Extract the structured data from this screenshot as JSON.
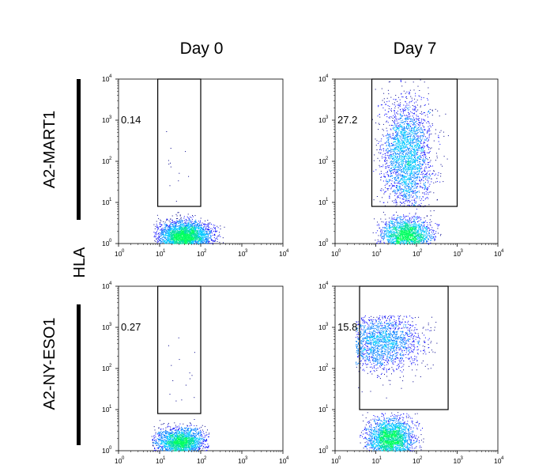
{
  "figure": {
    "column_titles": [
      "Day 0",
      "Day 7"
    ],
    "row_labels": [
      "A2-MART1",
      "A2-NY-ESO1"
    ],
    "y_axis_label": "HLA"
  },
  "chart_data": {
    "type": "scatter",
    "scale": "log",
    "xlim": [
      1,
      10000
    ],
    "ylim": [
      1,
      10000
    ],
    "x_tick_labels": [
      "10",
      "10",
      "10",
      "10",
      "10"
    ],
    "x_tick_exponents": [
      "0",
      "1",
      "2",
      "3",
      "4"
    ],
    "y_tick_labels": [
      "10",
      "10",
      "10",
      "10",
      "10"
    ],
    "y_tick_exponents": [
      "0",
      "1",
      "2",
      "3",
      "4"
    ],
    "colormap": [
      "#00008b",
      "#0000ff",
      "#0080ff",
      "#00c8ff",
      "#00e0a0",
      "#00ff60"
    ],
    "panels": [
      {
        "row": "A2-MART1",
        "column": "Day 0",
        "gate": {
          "x": [
            9,
            100
          ],
          "y": [
            8,
            10000
          ],
          "percent": "0.14"
        },
        "populations": [
          {
            "n": 2600,
            "x_log": [
              1.6,
              0.32
            ],
            "y_log": [
              0.2,
              0.17
            ],
            "x_clip": [
              0.85,
              2.6
            ],
            "y_clip": [
              0.0,
              0.78
            ]
          },
          {
            "n": 12,
            "x_log": [
              1.55,
              0.35
            ],
            "y_log": [
              1.9,
              0.55
            ],
            "x_clip": [
              1.05,
              1.95
            ],
            "y_clip": [
              1.0,
              2.8
            ]
          }
        ]
      },
      {
        "row": "A2-MART1",
        "column": "Day 7",
        "gate": {
          "x": [
            8,
            1000
          ],
          "y": [
            8,
            10000
          ],
          "percent": "27.2"
        },
        "populations": [
          {
            "n": 1700,
            "x_log": [
              1.75,
              0.3
            ],
            "y_log": [
              0.22,
              0.2
            ],
            "x_clip": [
              0.8,
              2.6
            ],
            "y_clip": [
              0.0,
              0.85
            ]
          },
          {
            "n": 2600,
            "x_log": [
              1.75,
              0.3
            ],
            "y_log": [
              2.1,
              0.7
            ],
            "x_clip": [
              0.9,
              2.8
            ],
            "y_clip": [
              0.9,
              4.0
            ]
          }
        ]
      },
      {
        "row": "A2-NY-ESO1",
        "column": "Day 0",
        "gate": {
          "x": [
            9,
            100
          ],
          "y": [
            8,
            10000
          ],
          "percent": "0.27"
        },
        "populations": [
          {
            "n": 1900,
            "x_log": [
              1.5,
              0.3
            ],
            "y_log": [
              0.22,
              0.17
            ],
            "x_clip": [
              0.8,
              2.2
            ],
            "y_clip": [
              0.0,
              0.8
            ]
          },
          {
            "n": 14,
            "x_log": [
              1.55,
              0.3
            ],
            "y_log": [
              1.9,
              0.6
            ],
            "x_clip": [
              1.1,
              1.95
            ],
            "y_clip": [
              1.0,
              3.0
            ]
          }
        ]
      },
      {
        "row": "A2-NY-ESO1",
        "column": "Day 7",
        "gate": {
          "x": [
            4,
            600
          ],
          "y": [
            10,
            10000
          ],
          "percent": "15.8"
        },
        "populations": [
          {
            "n": 2200,
            "x_log": [
              1.35,
              0.28
            ],
            "y_log": [
              0.3,
              0.25
            ],
            "x_clip": [
              0.6,
              2.2
            ],
            "y_clip": [
              0.0,
              0.95
            ]
          },
          {
            "n": 1700,
            "x_log": [
              1.1,
              0.5
            ],
            "y_log": [
              2.65,
              0.35
            ],
            "x_clip": [
              0.5,
              2.5
            ],
            "y_clip": [
              1.0,
              3.3
            ]
          }
        ]
      }
    ]
  }
}
